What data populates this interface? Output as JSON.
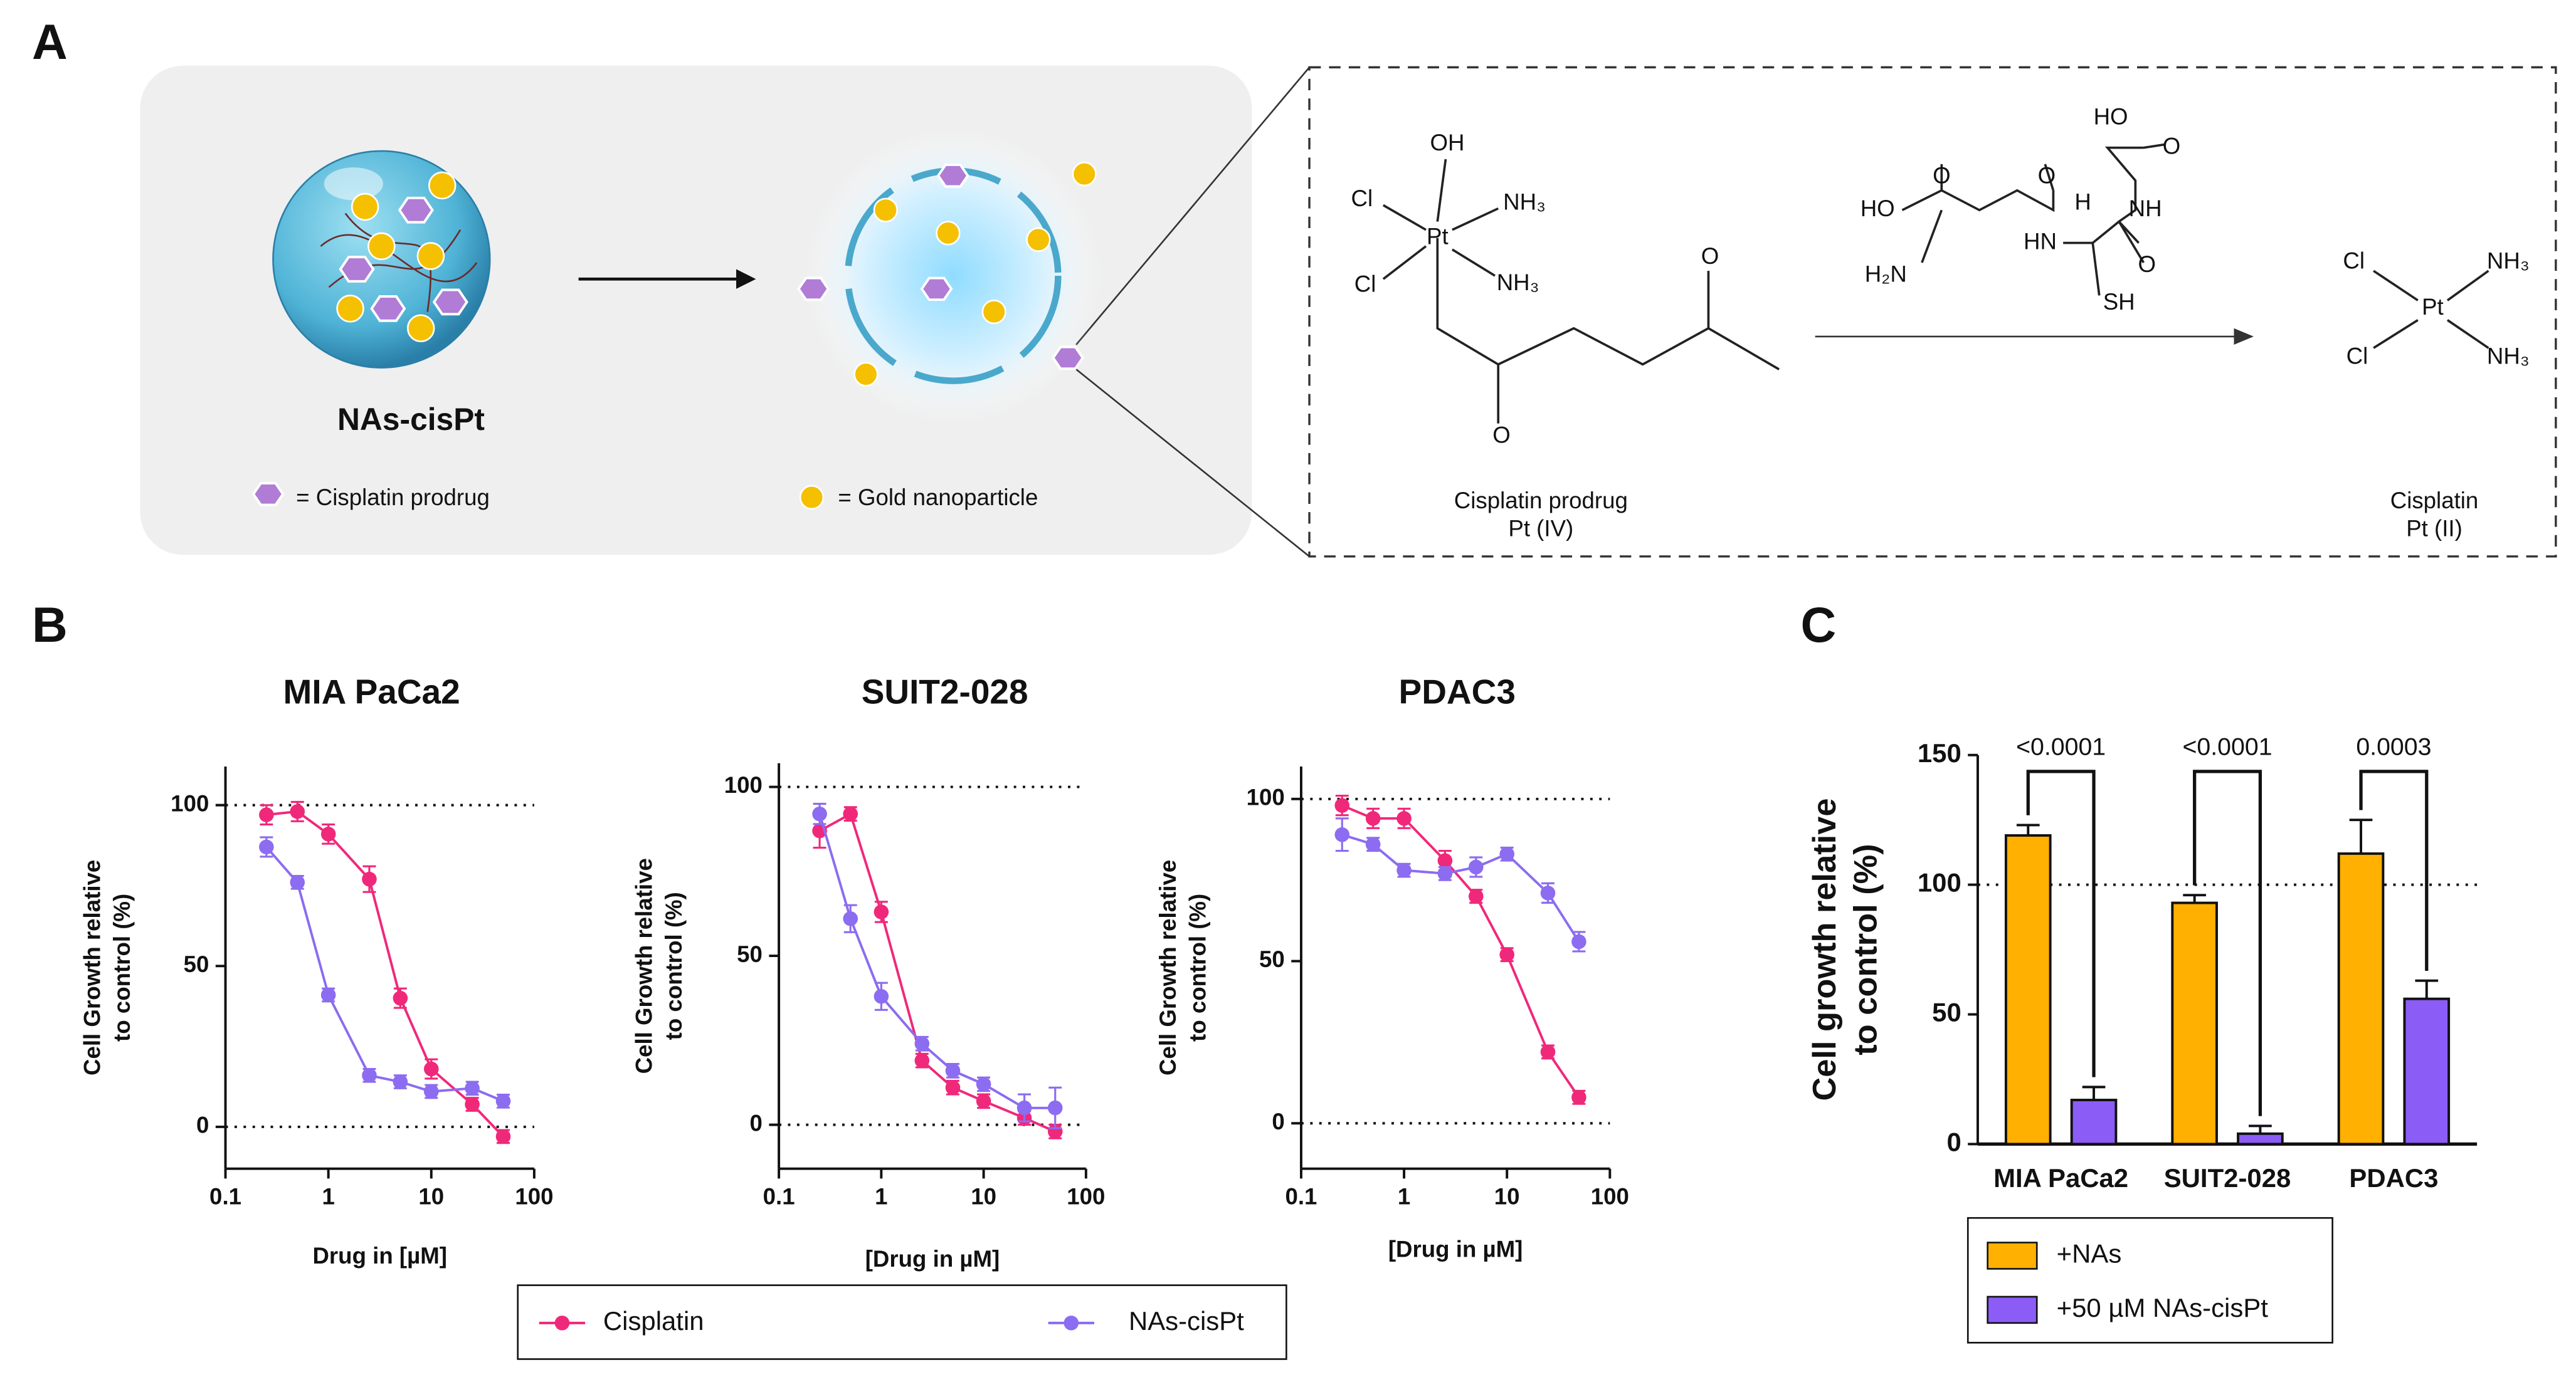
{
  "panel_labels": [
    "A",
    "B",
    "C"
  ],
  "diagram": {
    "caption": "NAs-cisPt",
    "legend": [
      "= Cisplatin prodrug",
      "= Gold nanoparticle"
    ],
    "prodrug_atoms": [
      "OH",
      "Cl",
      "NH₃",
      "Pt",
      "Cl",
      "NH₃",
      "O",
      "O"
    ],
    "reagent_atoms": [
      "HO",
      "O",
      "HO",
      "O",
      "O",
      "HN",
      "H",
      "NH",
      "O",
      "H₂N",
      "SH"
    ],
    "product_atoms": [
      "Cl",
      "NH₃",
      "Pt",
      "Cl",
      "NH₃"
    ],
    "names": [
      "Cisplatin prodrug",
      "Pt (IV)",
      "Cisplatin",
      "Pt (II)"
    ]
  },
  "chart_data": [
    {
      "type": "line",
      "title": "MIA PaCa2",
      "xlabel": "Drug in [µM]",
      "ylabel": [
        "Cell Growth relative",
        "to control (%)"
      ],
      "xscale": "log",
      "xlim": [
        0.1,
        100
      ],
      "xticks": [
        0.1,
        1,
        10,
        100
      ],
      "ylim": [
        -13,
        112
      ],
      "yticks": [
        0,
        50,
        100
      ],
      "hlines": [
        0,
        100
      ],
      "x": [
        0.25,
        0.5,
        1,
        2.5,
        5,
        10,
        25,
        50
      ],
      "series": [
        {
          "name": "Cisplatin",
          "color": "#f0287a",
          "values": [
            97,
            98,
            91,
            77,
            40,
            18,
            7,
            -3
          ],
          "errors": [
            3,
            3,
            3,
            4,
            3,
            3,
            2,
            2
          ]
        },
        {
          "name": "NAs-cisPt",
          "color": "#8c6cf0",
          "values": [
            87,
            76,
            41,
            16,
            14,
            11,
            12,
            8
          ],
          "errors": [
            3,
            2,
            2,
            2,
            2,
            2,
            2,
            2
          ]
        }
      ]
    },
    {
      "type": "line",
      "title": "SUIT2-028",
      "xlabel": "[Drug in µM]",
      "ylabel": [
        "Cell Growth relative",
        "to control (%)"
      ],
      "xscale": "log",
      "xlim": [
        0.1,
        100
      ],
      "xticks": [
        0.1,
        1,
        10,
        100
      ],
      "ylim": [
        -13,
        107
      ],
      "yticks": [
        0,
        50,
        100
      ],
      "hlines": [
        0,
        100
      ],
      "x": [
        0.25,
        0.5,
        1,
        2.5,
        5,
        10,
        25,
        50
      ],
      "series": [
        {
          "name": "Cisplatin",
          "color": "#f0287a",
          "values": [
            87,
            92,
            63,
            19,
            11,
            7,
            2,
            -2
          ],
          "errors": [
            5,
            2,
            3,
            2,
            2,
            2,
            2,
            2
          ]
        },
        {
          "name": "NAs-cisPt",
          "color": "#8c6cf0",
          "values": [
            92,
            61,
            38,
            24,
            16,
            12,
            5,
            5
          ],
          "errors": [
            3,
            4,
            4,
            2,
            2,
            2,
            4,
            6
          ]
        }
      ]
    },
    {
      "type": "line",
      "title": "PDAC3",
      "xlabel": "[Drug in µM]",
      "ylabel": [
        "Cell Growth relative",
        "to control (%)"
      ],
      "xscale": "log",
      "xlim": [
        0.1,
        100
      ],
      "xticks": [
        0.1,
        1,
        10,
        100
      ],
      "ylim": [
        -14,
        110
      ],
      "yticks": [
        0,
        50,
        100
      ],
      "hlines": [
        0,
        100
      ],
      "x": [
        0.25,
        0.5,
        1,
        2.5,
        5,
        10,
        25,
        50
      ],
      "series": [
        {
          "name": "Cisplatin",
          "color": "#f0287a",
          "values": [
            98,
            94,
            94,
            81,
            70,
            52,
            22,
            8
          ],
          "errors": [
            3,
            3,
            3,
            3,
            2,
            2,
            2,
            2
          ]
        },
        {
          "name": "NAs-cisPt",
          "color": "#8c6cf0",
          "values": [
            89,
            86,
            78,
            77,
            79,
            83,
            71,
            56
          ],
          "errors": [
            5,
            2,
            2,
            2,
            3,
            2,
            3,
            3
          ]
        }
      ]
    },
    {
      "type": "bar",
      "ylabel": [
        "Cell growth relative",
        "to control (%)"
      ],
      "categories": [
        "MIA PaCa2",
        "SUIT2-028",
        "PDAC3"
      ],
      "ylim": [
        0,
        150
      ],
      "yticks": [
        0,
        50,
        100,
        150
      ],
      "hlines": [
        100
      ],
      "annotations": [
        "<0.0001",
        "<0.0001",
        "0.0003"
      ],
      "series": [
        {
          "name": "+NAs",
          "color": "#ffb000",
          "values": [
            119,
            93,
            112
          ],
          "errors": [
            4,
            3,
            13
          ]
        },
        {
          "name": "+50 µM NAs-cisPt",
          "color": "#8b5cf6",
          "values": [
            17,
            4,
            56
          ],
          "errors": [
            5,
            3,
            7
          ]
        }
      ]
    }
  ]
}
